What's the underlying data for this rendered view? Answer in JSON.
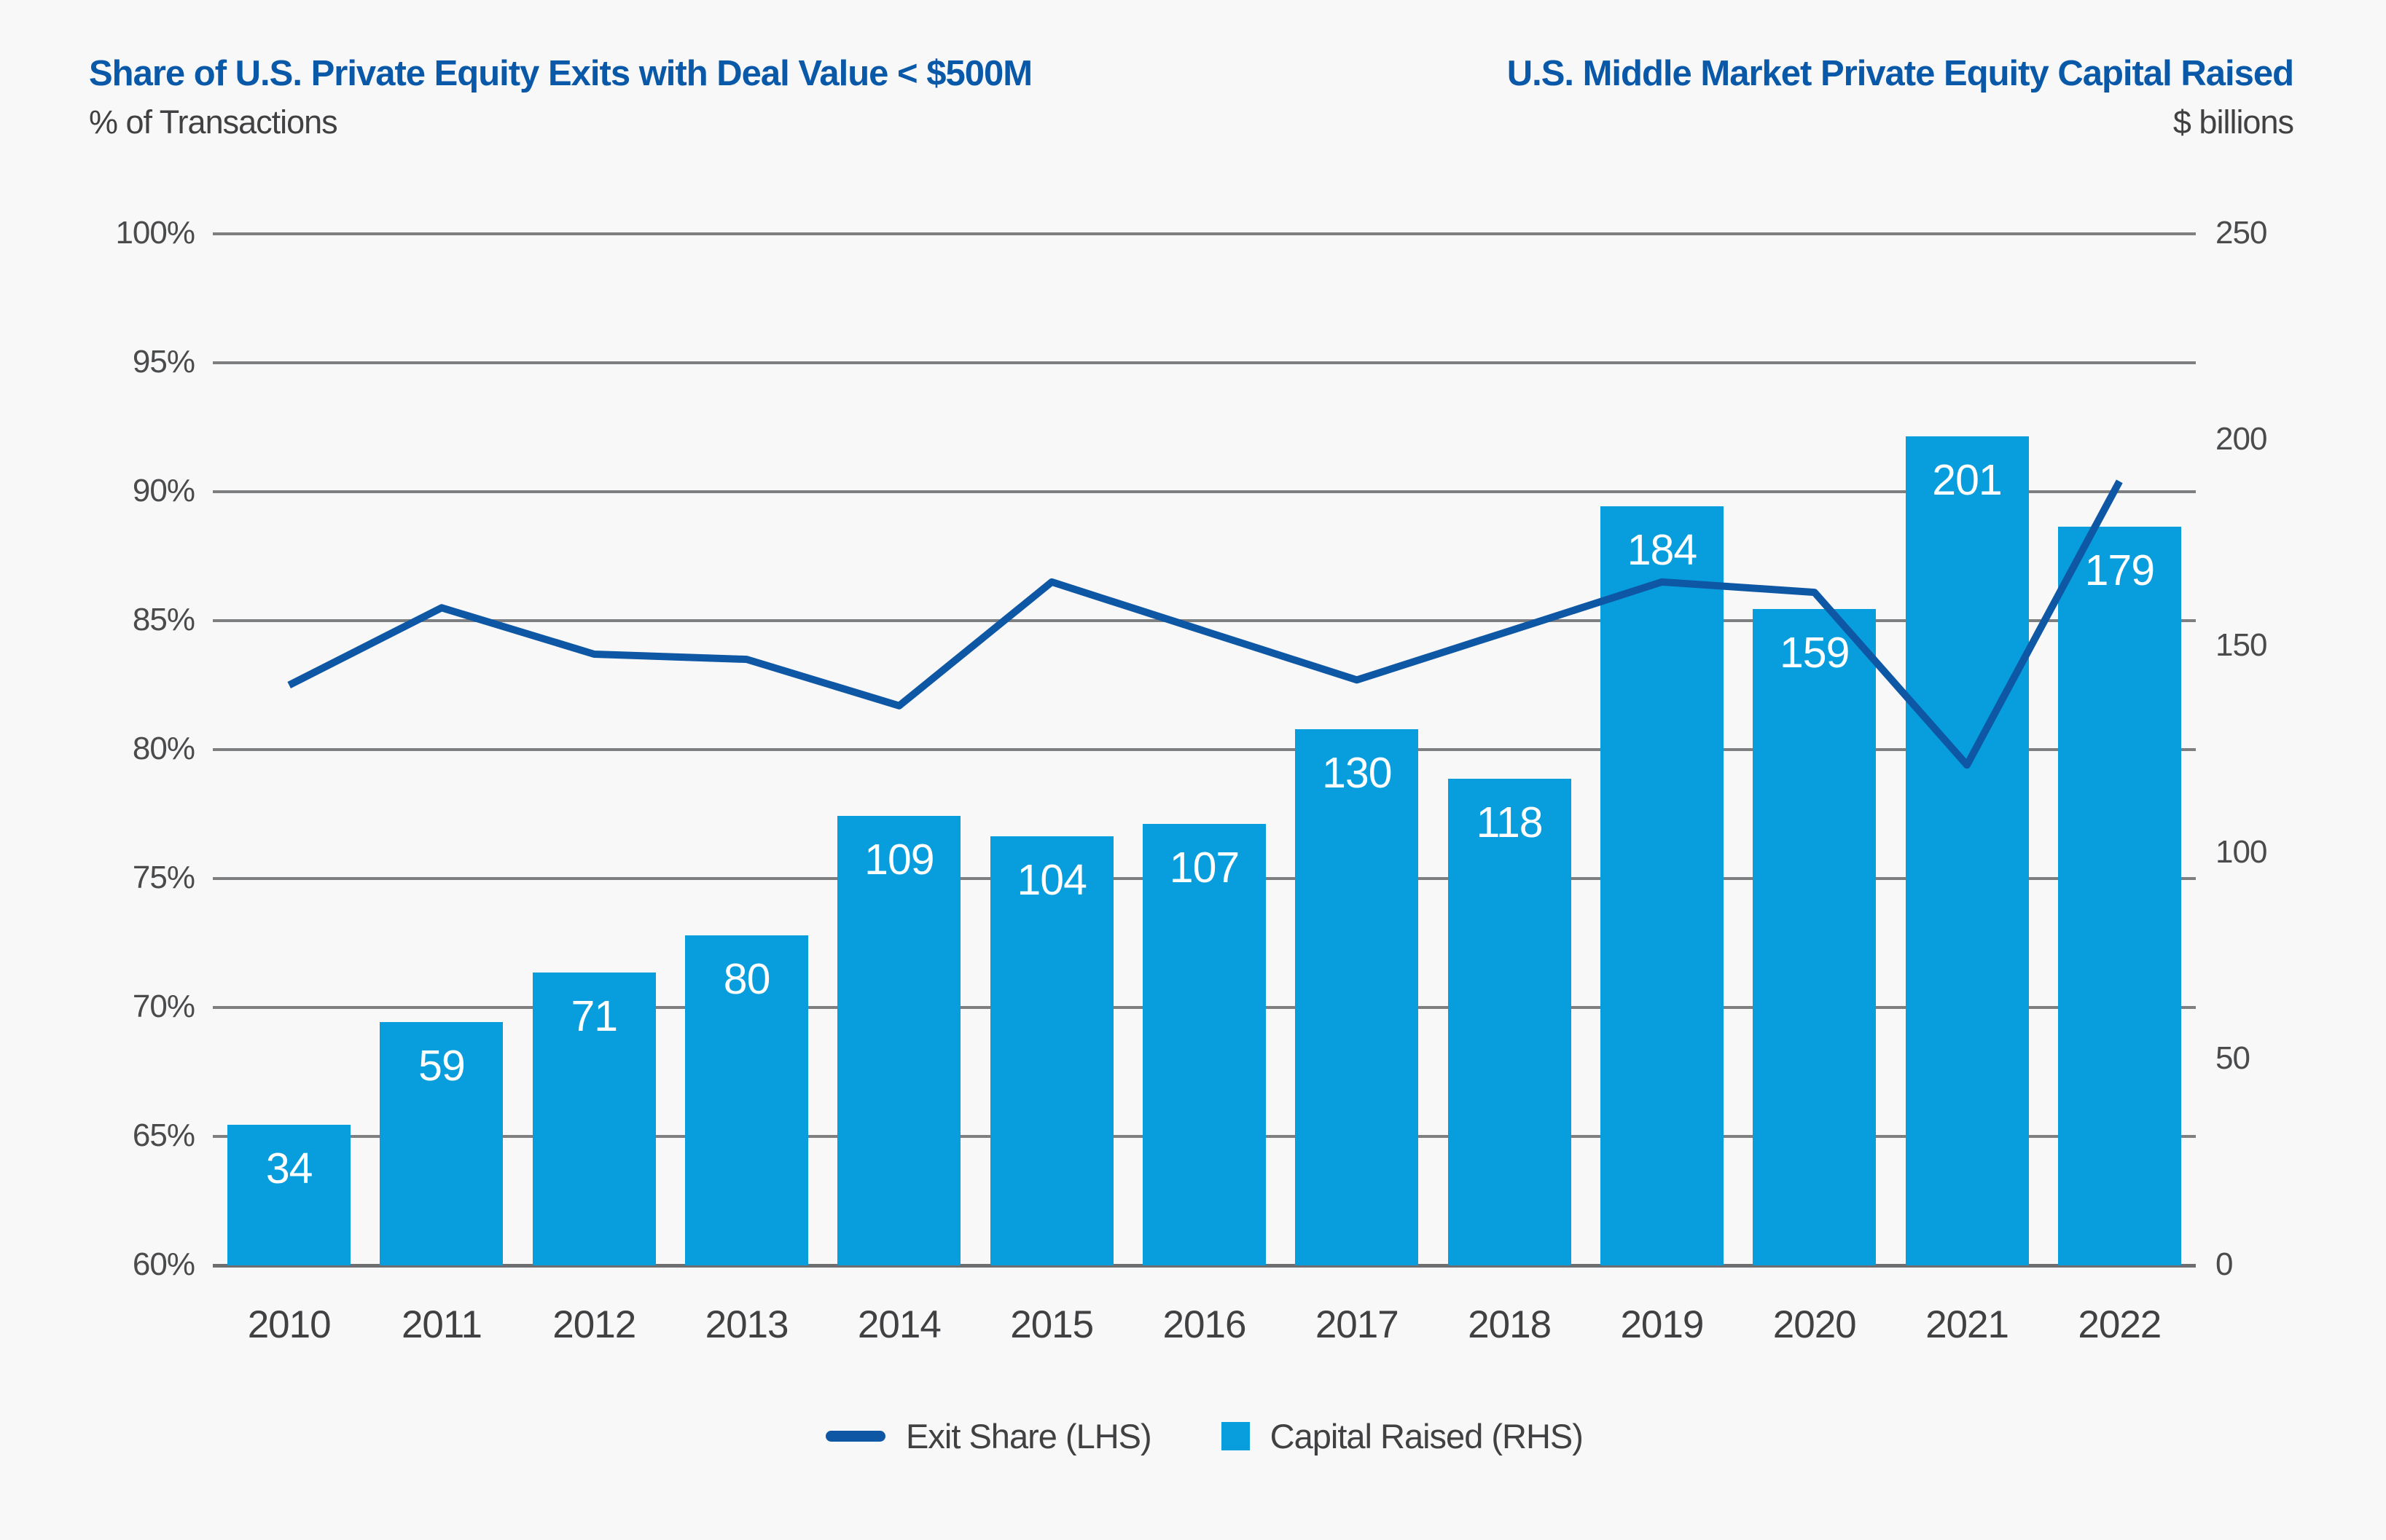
{
  "header": {
    "left": {
      "title": "Share of U.S. Private Equity Exits with Deal Value < $500M",
      "subtitle": "% of Transactions"
    },
    "right": {
      "title": "U.S. Middle Market Private Equity Capital Raised",
      "subtitle": "$ billions"
    }
  },
  "legend": {
    "items": [
      {
        "swatch": "line",
        "label": "Exit Share (LHS)",
        "color": "#0e57a5"
      },
      {
        "swatch": "square",
        "label": "Capital Raised (RHS)",
        "color": "#089edd"
      }
    ]
  },
  "colors": {
    "background": "#f8f8f8",
    "bar": "#089edd",
    "line": "#0e57a5",
    "title_blue": "#0a58a8",
    "grid": "#7e7f81",
    "axis_text": "#4a4b4d"
  },
  "chart_data": {
    "type": "combo",
    "categories": [
      "2010",
      "2011",
      "2012",
      "2013",
      "2014",
      "2015",
      "2016",
      "2017",
      "2018",
      "2019",
      "2020",
      "2021",
      "2022"
    ],
    "series": [
      {
        "name": "Exit Share (LHS)",
        "type": "line",
        "axis": "left",
        "color": "#0e57a5",
        "values": [
          82.5,
          85.5,
          83.7,
          83.5,
          81.7,
          86.5,
          84.6,
          82.7,
          84.6,
          86.5,
          86.1,
          79.4,
          90.4
        ]
      },
      {
        "name": "Capital Raised (RHS)",
        "type": "bar",
        "axis": "right",
        "color": "#089edd",
        "values": [
          34,
          59,
          71,
          80,
          109,
          104,
          107,
          130,
          118,
          184,
          159,
          201,
          179
        ],
        "data_labels": [
          "34",
          "59",
          "71",
          "80",
          "109",
          "104",
          "107",
          "130",
          "118",
          "184",
          "159",
          "201",
          "179"
        ]
      }
    ],
    "left_axis": {
      "title": "% of Transactions",
      "min": 60,
      "max": 100,
      "step": 5,
      "tick_labels": [
        "100%",
        "95%",
        "90%",
        "85%",
        "80%",
        "75%",
        "70%",
        "65%",
        "60%"
      ]
    },
    "right_axis": {
      "title": "$ billions",
      "min": 0,
      "max": 250,
      "step": 50,
      "tick_labels": [
        "250",
        "200",
        "150",
        "100",
        "50",
        "0"
      ]
    },
    "grid": true,
    "legend_position": "bottom",
    "title": "Share of U.S. Private Equity Exits with Deal Value < $500M / U.S. Middle Market Private Equity Capital Raised"
  }
}
